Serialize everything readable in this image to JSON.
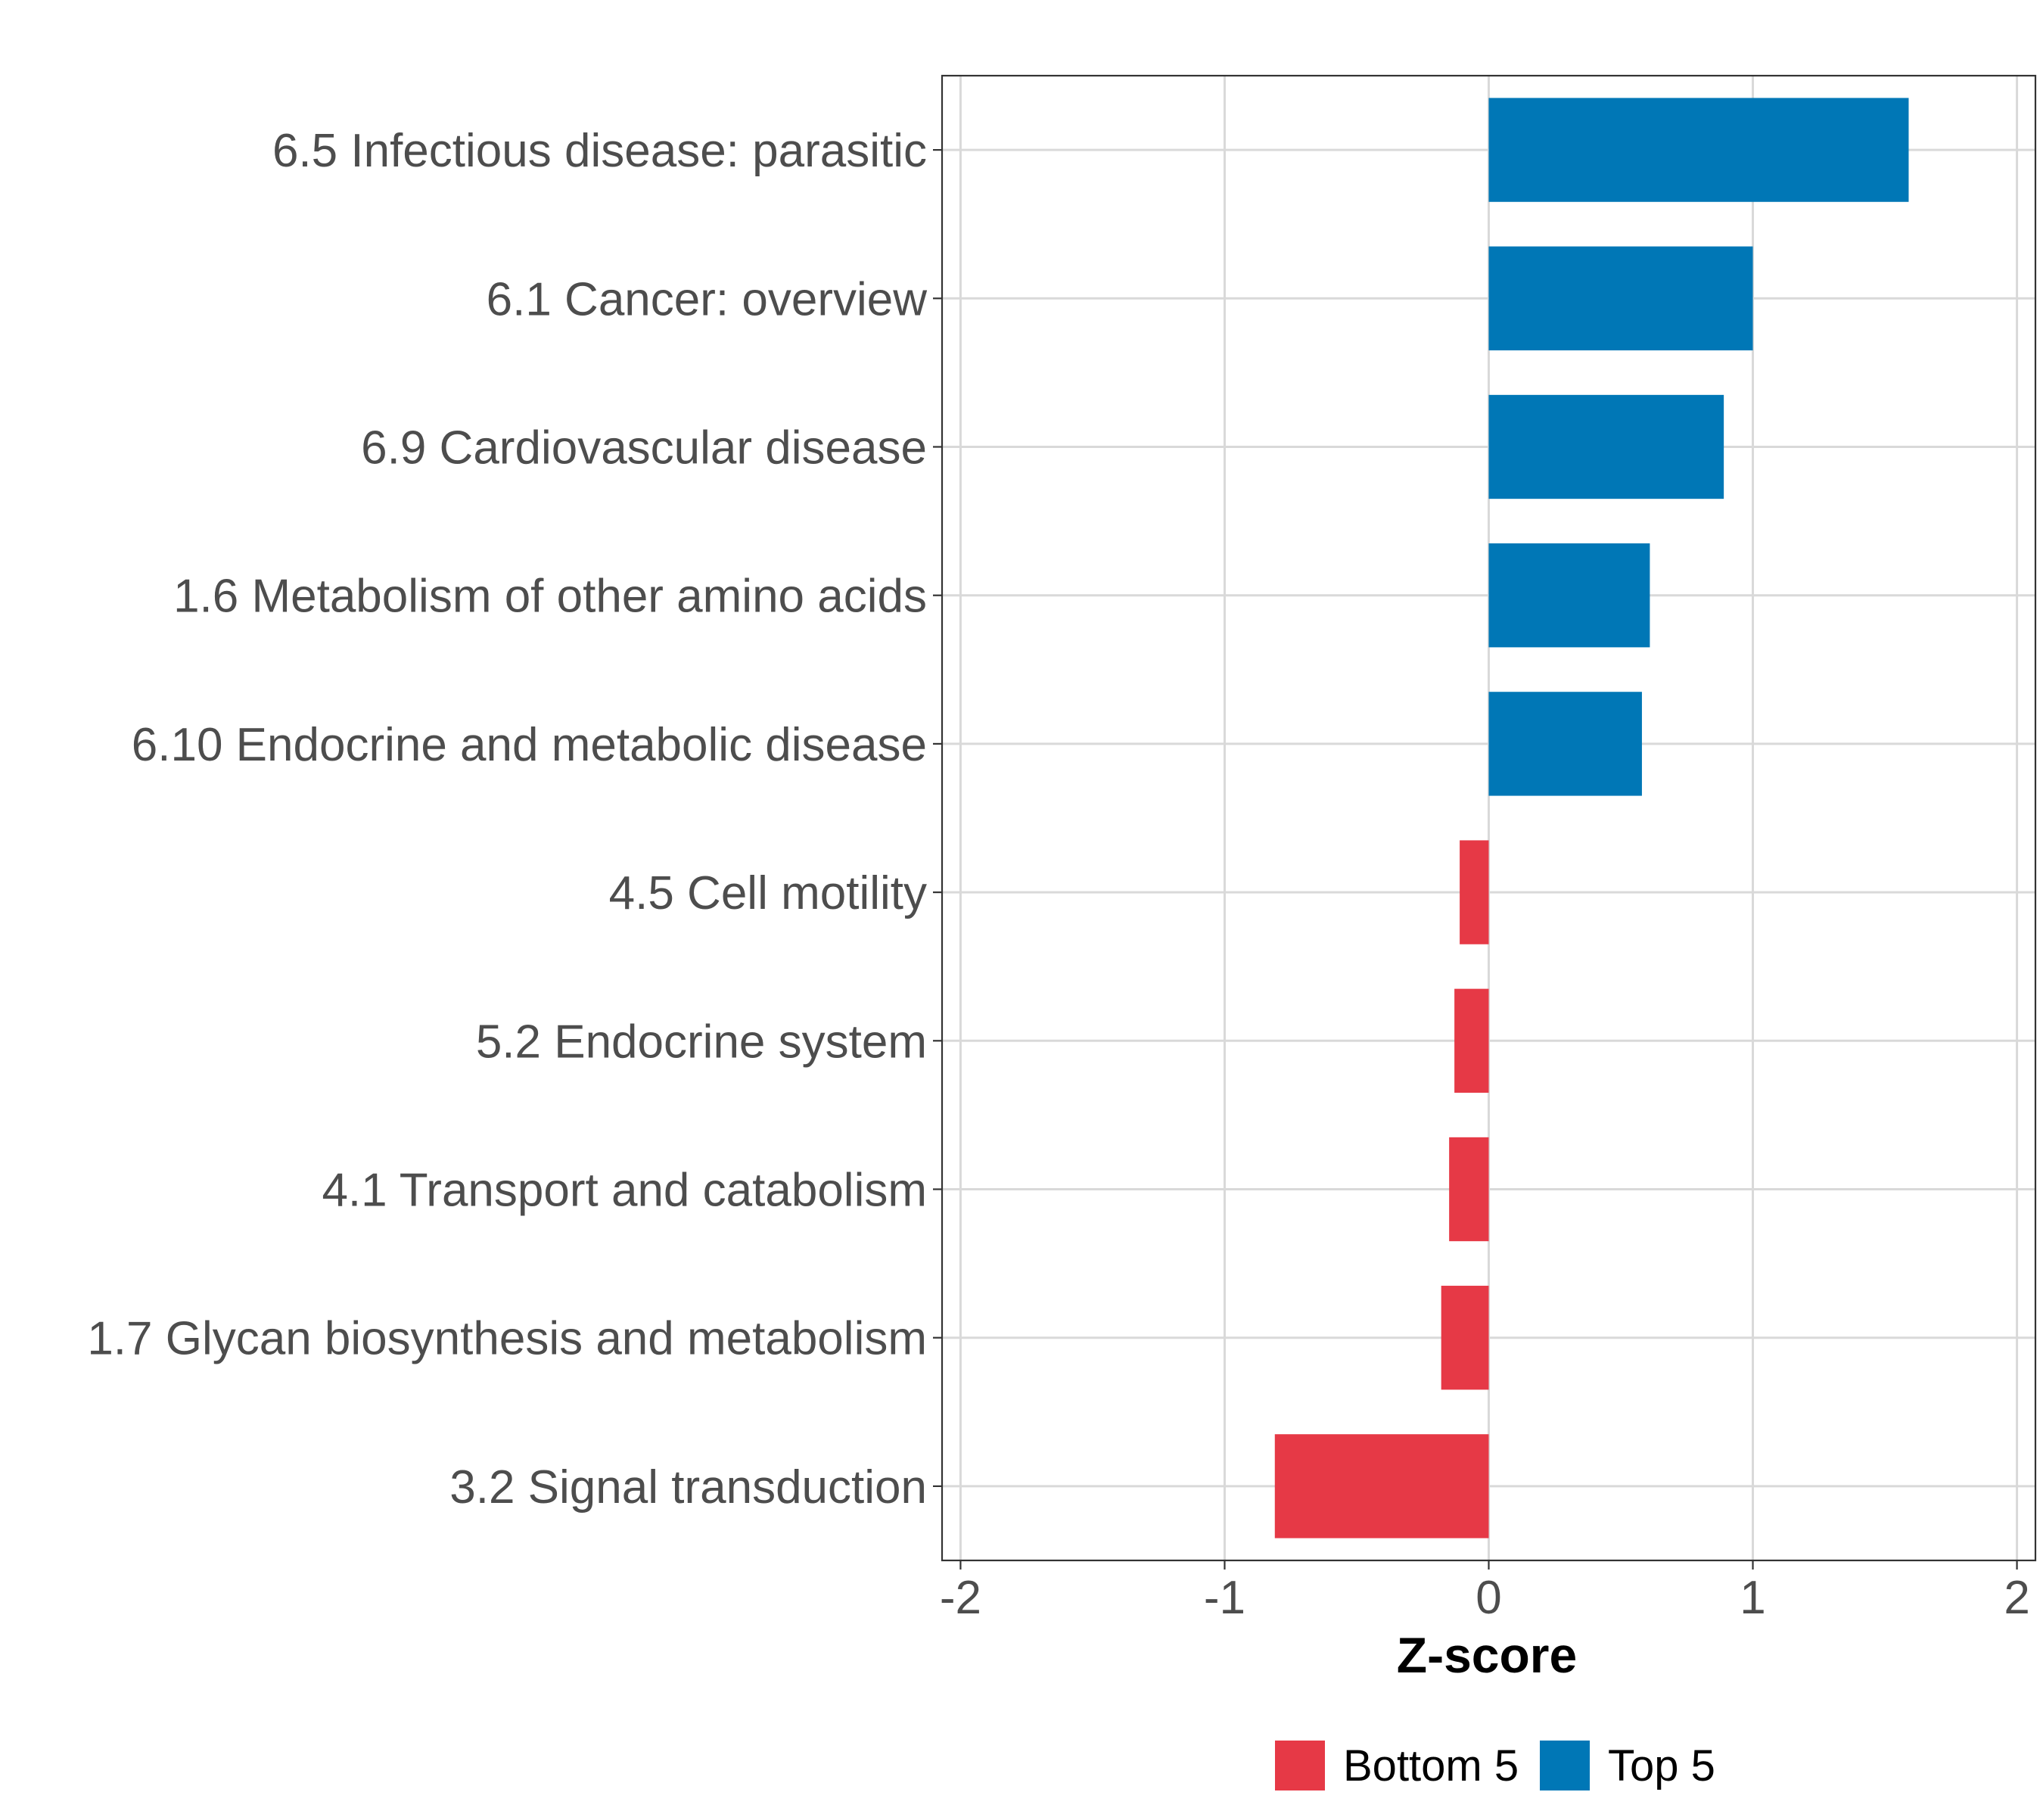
{
  "chart_data": {
    "type": "bar",
    "orientation": "horizontal",
    "title": "",
    "xlabel": "Z-score",
    "ylabel": "",
    "xlim": [
      -2.07,
      2.07
    ],
    "xticks": [
      -2,
      -1,
      0,
      1,
      2
    ],
    "xtick_labels": [
      "-2",
      "-1",
      "0",
      "1",
      "2"
    ],
    "grid": true,
    "legend_position": "bottom",
    "categories": [
      "6.5 Infectious disease: parasitic",
      "6.1 Cancer: overview",
      "6.9 Cardiovascular disease",
      "1.6 Metabolism of other amino acids",
      "6.10 Endocrine and metabolic disease",
      "4.5 Cell motility",
      "5.2 Endocrine system",
      "4.1 Transport and catabolism",
      "1.7 Glycan biosynthesis and metabolism",
      "3.2 Signal transduction"
    ],
    "values": [
      1.59,
      1.0,
      0.89,
      0.61,
      0.58,
      -0.11,
      -0.13,
      -0.15,
      -0.18,
      -0.81
    ],
    "groups": [
      "Top 5",
      "Top 5",
      "Top 5",
      "Top 5",
      "Top 5",
      "Bottom 5",
      "Bottom 5",
      "Bottom 5",
      "Bottom 5",
      "Bottom 5"
    ],
    "legend": [
      {
        "name": "Bottom 5",
        "color": "#E63946"
      },
      {
        "name": "Top 5",
        "color": "#0077B6"
      }
    ]
  }
}
